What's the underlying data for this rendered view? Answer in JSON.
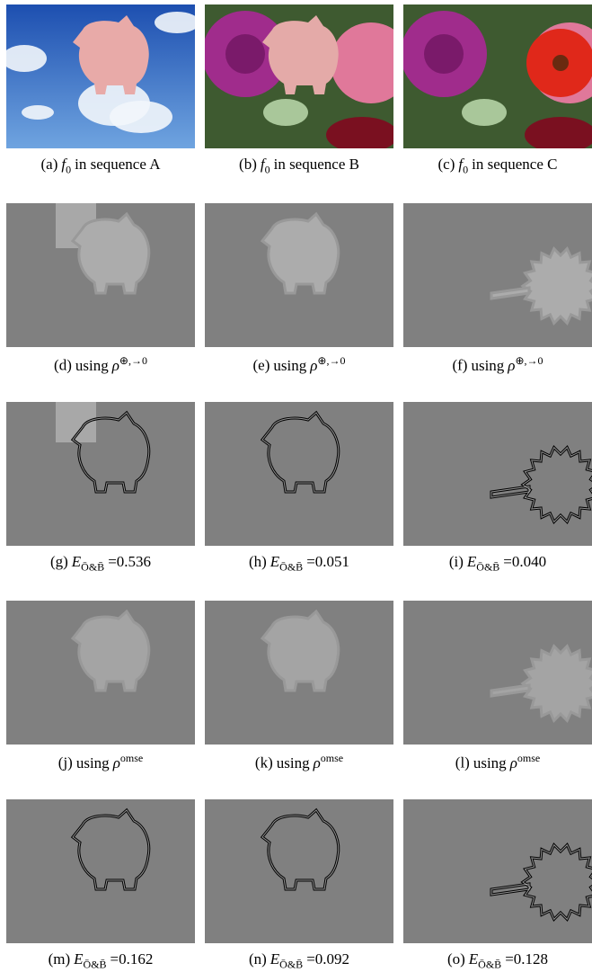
{
  "panels": [
    {
      "label": "(a)",
      "sym": "f",
      "sub": "0",
      "post": "in sequence A"
    },
    {
      "label": "(b)",
      "sym": "f",
      "sub": "0",
      "post": "in sequence B"
    },
    {
      "label": "(c)",
      "sym": "f",
      "sub": "0",
      "post": "in sequence C"
    },
    {
      "label": "(d)",
      "pre": "using",
      "sym": "ρ",
      "sup": "⊕,→0"
    },
    {
      "label": "(e)",
      "pre": "using",
      "sym": "ρ",
      "sup": "⊕,→0"
    },
    {
      "label": "(f)",
      "pre": "using",
      "sym": "ρ",
      "sup": "⊕,→0"
    },
    {
      "label": "(g)",
      "sym": "E",
      "sub": "Ō&B̄",
      "post": "=0.536"
    },
    {
      "label": "(h)",
      "sym": "E",
      "sub": "Ō&B̄",
      "post": "=0.051"
    },
    {
      "label": "(i)",
      "sym": "E",
      "sub": "Ō&B̄",
      "post": "=0.040"
    },
    {
      "label": "(j)",
      "pre": "using",
      "sym": "ρ",
      "sup": "omse"
    },
    {
      "label": "(k)",
      "pre": "using",
      "sym": "ρ",
      "sup": "omse"
    },
    {
      "label": "(l)",
      "pre": "using",
      "sym": "ρ",
      "sup": "omse"
    },
    {
      "label": "(m)",
      "sym": "E",
      "sub": "Ō&B̄",
      "post": "=0.162"
    },
    {
      "label": "(n)",
      "sym": "E",
      "sub": "Ō&B̄",
      "post": "=0.092"
    },
    {
      "label": "(o)",
      "sym": "E",
      "sub": "Ō&B̄",
      "post": "=0.128"
    }
  ]
}
